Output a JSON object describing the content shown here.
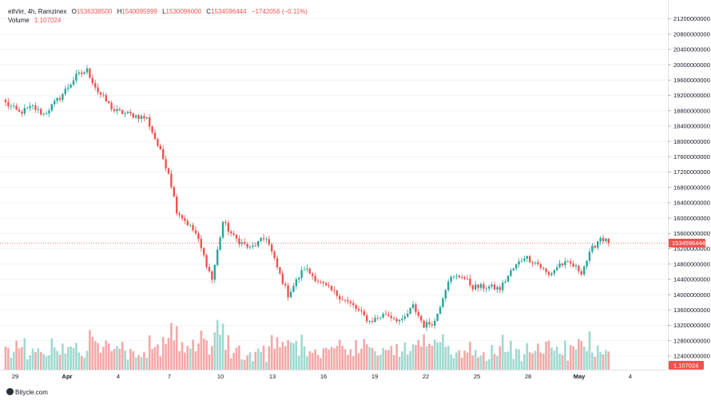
{
  "legend": {
    "symbol": "eth/irr, 4h, Ramzinex",
    "open_label": "O",
    "open": "1536338500",
    "high_label": "H",
    "high": "1540095999",
    "low_label": "L",
    "low": "1530096000",
    "close_label": "C",
    "close": "1534596444",
    "change": "−1742056 (−0.11%)",
    "volume_label": "Volume",
    "volume": "1.107024"
  },
  "footer": {
    "brand": "Bitycle.com"
  },
  "colors": {
    "up": "#26a69a",
    "down": "#ef5350",
    "up_volume": "#9fd9cf",
    "down_volume": "#f3a8a8",
    "grid": "#f2f3f5"
  },
  "chart_data": {
    "type": "candlestick",
    "interval": "4h",
    "y_axis": {
      "ylim": [
        12200000000,
        21300000000
      ],
      "ticks": [
        "12400000000",
        "12800000000",
        "13200000000",
        "13600000000",
        "14000000000",
        "14400000000",
        "14800000000",
        "15200000000",
        "15600000000",
        "16000000000",
        "16400000000",
        "16800000000",
        "17200000000",
        "17600000000",
        "18000000000",
        "18400000000",
        "18800000000",
        "19200000000",
        "19600000000",
        "20000000000",
        "20400000000",
        "20800000000",
        "21200000000"
      ]
    },
    "x_axis": {
      "ticks": [
        "29",
        "Apr",
        "4",
        "7",
        "10",
        "13",
        "16",
        "19",
        "22",
        "25",
        "28",
        "May",
        "4"
      ],
      "bold": [
        "Apr",
        "May"
      ]
    },
    "last_price": 15345964440,
    "last_price_label": "1534596444",
    "last_volume_label": "1.107024",
    "keypoints": [
      {
        "bar": 0,
        "price": 19000000000
      },
      {
        "bar": 5,
        "price": 18750000000
      },
      {
        "bar": 10,
        "price": 18900000000
      },
      {
        "bar": 14,
        "price": 18700000000
      },
      {
        "bar": 20,
        "price": 19150000000
      },
      {
        "bar": 26,
        "price": 19700000000
      },
      {
        "bar": 30,
        "price": 19850000000
      },
      {
        "bar": 34,
        "price": 19300000000
      },
      {
        "bar": 40,
        "price": 18800000000
      },
      {
        "bar": 46,
        "price": 18700000000
      },
      {
        "bar": 52,
        "price": 18600000000
      },
      {
        "bar": 60,
        "price": 17200000000
      },
      {
        "bar": 63,
        "price": 16200000000
      },
      {
        "bar": 70,
        "price": 15600000000
      },
      {
        "bar": 76,
        "price": 14400000000
      },
      {
        "bar": 80,
        "price": 15900000000
      },
      {
        "bar": 84,
        "price": 15500000000
      },
      {
        "bar": 90,
        "price": 15200000000
      },
      {
        "bar": 96,
        "price": 15500000000
      },
      {
        "bar": 100,
        "price": 14700000000
      },
      {
        "bar": 104,
        "price": 14000000000
      },
      {
        "bar": 110,
        "price": 14700000000
      },
      {
        "bar": 116,
        "price": 14300000000
      },
      {
        "bar": 122,
        "price": 14000000000
      },
      {
        "bar": 128,
        "price": 13700000000
      },
      {
        "bar": 134,
        "price": 13300000000
      },
      {
        "bar": 140,
        "price": 13500000000
      },
      {
        "bar": 146,
        "price": 13300000000
      },
      {
        "bar": 150,
        "price": 13700000000
      },
      {
        "bar": 154,
        "price": 13200000000
      },
      {
        "bar": 158,
        "price": 13300000000
      },
      {
        "bar": 163,
        "price": 14400000000
      },
      {
        "bar": 168,
        "price": 14500000000
      },
      {
        "bar": 172,
        "price": 14200000000
      },
      {
        "bar": 178,
        "price": 14200000000
      },
      {
        "bar": 182,
        "price": 14150000000
      },
      {
        "bar": 186,
        "price": 14600000000
      },
      {
        "bar": 191,
        "price": 15000000000
      },
      {
        "bar": 196,
        "price": 14800000000
      },
      {
        "bar": 200,
        "price": 14500000000
      },
      {
        "bar": 204,
        "price": 14800000000
      },
      {
        "bar": 208,
        "price": 14800000000
      },
      {
        "bar": 212,
        "price": 14600000000
      },
      {
        "bar": 216,
        "price": 15200000000
      },
      {
        "bar": 219,
        "price": 15500000000
      },
      {
        "bar": 222,
        "price": 15345964440
      }
    ]
  }
}
